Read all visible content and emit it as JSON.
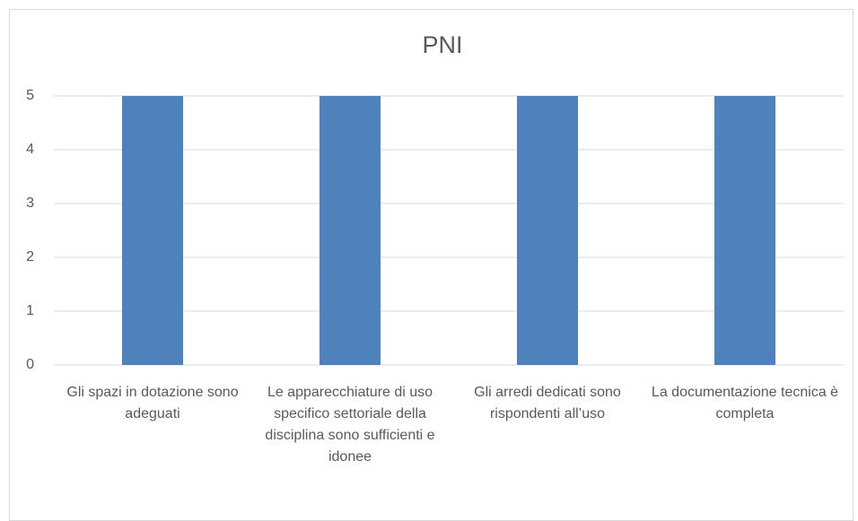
{
  "chart_data": {
    "type": "bar",
    "title": "PNI",
    "categories": [
      "Gli spazi in dotazione sono adeguati",
      "Le apparecchiature di uso specifico settoriale della disciplina sono sufficienti e idonee",
      "Gli arredi dedicati sono rispondenti all’uso",
      "La documentazione tecnica è completa"
    ],
    "values": [
      5,
      5,
      5,
      5
    ],
    "color": "#4f81bd",
    "ylim": [
      0,
      5
    ],
    "yticks": [
      0,
      1,
      2,
      3,
      4,
      5
    ],
    "grid": true
  }
}
